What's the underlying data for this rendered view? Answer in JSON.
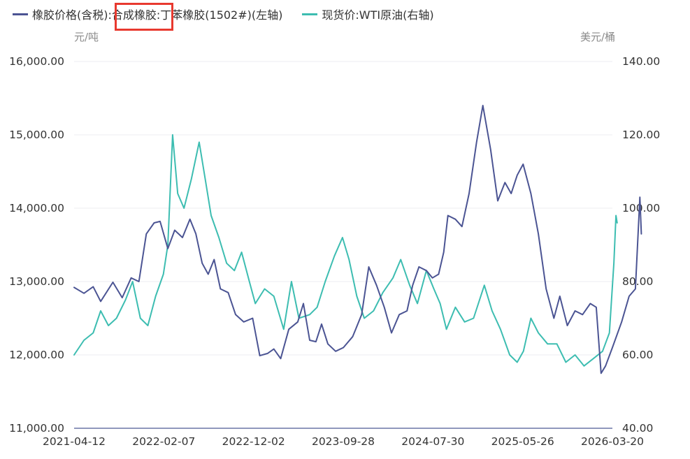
{
  "legend": {
    "series1": "橡胶价格(含税):合成橡胶:丁苯橡胶(1502#)(左轴)",
    "series2": "现货价:WTI原油(右轴)"
  },
  "units": {
    "left": "元/吨",
    "right": "美元/桶"
  },
  "colors": {
    "rubber": "#4b5493",
    "oil": "#3dbdb1",
    "axis": "#6a75a6",
    "grid": "#ececf2",
    "highlight": "#e8392f"
  },
  "chart_data": {
    "type": "line",
    "x_ticks": [
      "2021-04-12",
      "2022-02-07",
      "2022-12-02",
      "2023-09-28",
      "2024-07-30",
      "2025-05-26",
      "2026-03-20"
    ],
    "y_left": {
      "label": "元/吨",
      "range": [
        11000,
        16000
      ],
      "ticks": [
        "11,000.00",
        "12,000.00",
        "13,000.00",
        "14,000.00",
        "15,000.00",
        "16,000.00"
      ]
    },
    "y_right": {
      "label": "美元/桶",
      "range": [
        40,
        140
      ],
      "ticks": [
        "40.00",
        "60.00",
        "80.00",
        "100.00",
        "120.00",
        "140.00"
      ]
    },
    "grid": true,
    "legend_position": "top-left",
    "series": [
      {
        "name": "橡胶价格(含税):合成橡胶:丁苯橡胶(1502#)(左轴)",
        "axis": "left",
        "points": [
          [
            "2021-04-12",
            12920
          ],
          [
            "2021-05-15",
            12840
          ],
          [
            "2021-06-15",
            12930
          ],
          [
            "2021-07-10",
            12730
          ],
          [
            "2021-08-20",
            12990
          ],
          [
            "2021-09-20",
            12780
          ],
          [
            "2021-10-20",
            13050
          ],
          [
            "2021-11-15",
            13000
          ],
          [
            "2021-12-10",
            13650
          ],
          [
            "2022-01-05",
            13800
          ],
          [
            "2022-01-25",
            13820
          ],
          [
            "2022-02-20",
            13450
          ],
          [
            "2022-03-15",
            13700
          ],
          [
            "2022-04-10",
            13600
          ],
          [
            "2022-05-05",
            13850
          ],
          [
            "2022-05-25",
            13650
          ],
          [
            "2022-06-15",
            13250
          ],
          [
            "2022-07-05",
            13100
          ],
          [
            "2022-07-25",
            13300
          ],
          [
            "2022-08-15",
            12900
          ],
          [
            "2022-09-10",
            12850
          ],
          [
            "2022-10-05",
            12550
          ],
          [
            "2022-11-01",
            12450
          ],
          [
            "2022-12-01",
            12500
          ],
          [
            "2022-12-25",
            11990
          ],
          [
            "2023-01-20",
            12020
          ],
          [
            "2023-02-10",
            12080
          ],
          [
            "2023-03-05",
            11950
          ],
          [
            "2023-04-01",
            12350
          ],
          [
            "2023-05-01",
            12450
          ],
          [
            "2023-05-20",
            12700
          ],
          [
            "2023-06-10",
            12200
          ],
          [
            "2023-07-01",
            12180
          ],
          [
            "2023-07-20",
            12420
          ],
          [
            "2023-08-10",
            12150
          ],
          [
            "2023-09-05",
            12050
          ],
          [
            "2023-10-01",
            12100
          ],
          [
            "2023-11-01",
            12250
          ],
          [
            "2023-12-01",
            12550
          ],
          [
            "2023-12-25",
            13200
          ],
          [
            "2024-01-20",
            12950
          ],
          [
            "2024-02-15",
            12650
          ],
          [
            "2024-03-10",
            12300
          ],
          [
            "2024-04-05",
            12550
          ],
          [
            "2024-05-01",
            12600
          ],
          [
            "2024-05-20",
            12950
          ],
          [
            "2024-06-10",
            13200
          ],
          [
            "2024-07-05",
            13150
          ],
          [
            "2024-07-25",
            13050
          ],
          [
            "2024-08-15",
            13100
          ],
          [
            "2024-09-01",
            13400
          ],
          [
            "2024-09-15",
            13900
          ],
          [
            "2024-10-10",
            13850
          ],
          [
            "2024-11-01",
            13750
          ],
          [
            "2024-11-25",
            14200
          ],
          [
            "2024-12-20",
            14900
          ],
          [
            "2025-01-10",
            15400
          ],
          [
            "2025-02-05",
            14800
          ],
          [
            "2025-03-01",
            14100
          ],
          [
            "2025-03-25",
            14350
          ],
          [
            "2025-04-15",
            14200
          ],
          [
            "2025-05-05",
            14450
          ],
          [
            "2025-05-25",
            14600
          ],
          [
            "2025-06-20",
            14200
          ],
          [
            "2025-07-15",
            13650
          ],
          [
            "2025-08-10",
            12900
          ],
          [
            "2025-09-05",
            12500
          ],
          [
            "2025-09-25",
            12800
          ],
          [
            "2025-10-20",
            12400
          ],
          [
            "2025-11-15",
            12600
          ],
          [
            "2025-12-10",
            12550
          ],
          [
            "2026-01-05",
            12700
          ],
          [
            "2026-01-25",
            12650
          ],
          [
            "2026-02-10",
            11750
          ],
          [
            "2026-02-25",
            11850
          ],
          [
            "2026-03-20",
            12100
          ],
          [
            "2026-04-20",
            12450
          ],
          [
            "2026-05-15",
            12800
          ],
          [
            "2026-06-05",
            12900
          ],
          [
            "2026-06-20",
            14150
          ],
          [
            "2026-06-25",
            13650
          ]
        ]
      },
      {
        "name": "现货价:WTI原油(右轴)",
        "axis": "right",
        "points": [
          [
            "2021-04-12",
            60
          ],
          [
            "2021-05-15",
            64
          ],
          [
            "2021-06-15",
            66
          ],
          [
            "2021-07-10",
            72
          ],
          [
            "2021-08-05",
            68
          ],
          [
            "2021-09-01",
            70
          ],
          [
            "2021-10-01",
            75
          ],
          [
            "2021-10-25",
            80
          ],
          [
            "2021-11-20",
            70
          ],
          [
            "2021-12-15",
            68
          ],
          [
            "2022-01-10",
            76
          ],
          [
            "2022-02-05",
            82
          ],
          [
            "2022-02-20",
            90
          ],
          [
            "2022-03-08",
            120
          ],
          [
            "2022-03-25",
            104
          ],
          [
            "2022-04-15",
            100
          ],
          [
            "2022-05-10",
            108
          ],
          [
            "2022-06-05",
            118
          ],
          [
            "2022-06-25",
            108
          ],
          [
            "2022-07-15",
            98
          ],
          [
            "2022-08-10",
            92
          ],
          [
            "2022-09-05",
            85
          ],
          [
            "2022-10-01",
            83
          ],
          [
            "2022-10-25",
            88
          ],
          [
            "2022-11-20",
            80
          ],
          [
            "2022-12-10",
            74
          ],
          [
            "2023-01-10",
            78
          ],
          [
            "2023-02-10",
            76
          ],
          [
            "2023-03-15",
            67
          ],
          [
            "2023-04-10",
            80
          ],
          [
            "2023-05-05",
            70
          ],
          [
            "2023-06-10",
            71
          ],
          [
            "2023-07-05",
            73
          ],
          [
            "2023-08-01",
            80
          ],
          [
            "2023-09-01",
            87
          ],
          [
            "2023-09-28",
            92
          ],
          [
            "2023-10-20",
            86
          ],
          [
            "2023-11-15",
            76
          ],
          [
            "2023-12-10",
            70
          ],
          [
            "2024-01-10",
            72
          ],
          [
            "2024-02-10",
            77
          ],
          [
            "2024-03-15",
            81
          ],
          [
            "2024-04-10",
            86
          ],
          [
            "2024-05-10",
            79
          ],
          [
            "2024-06-05",
            74
          ],
          [
            "2024-07-05",
            83
          ],
          [
            "2024-07-30",
            78
          ],
          [
            "2024-08-20",
            74
          ],
          [
            "2024-09-10",
            67
          ],
          [
            "2024-10-10",
            73
          ],
          [
            "2024-11-10",
            69
          ],
          [
            "2024-12-10",
            70
          ],
          [
            "2025-01-15",
            79
          ],
          [
            "2025-02-10",
            72
          ],
          [
            "2025-03-10",
            67
          ],
          [
            "2025-04-10",
            60
          ],
          [
            "2025-05-05",
            58
          ],
          [
            "2025-05-26",
            61
          ],
          [
            "2025-06-20",
            70
          ],
          [
            "2025-07-15",
            66
          ],
          [
            "2025-08-15",
            63
          ],
          [
            "2025-09-15",
            63
          ],
          [
            "2025-10-15",
            58
          ],
          [
            "2025-11-15",
            60
          ],
          [
            "2025-12-15",
            57
          ],
          [
            "2026-01-15",
            59
          ],
          [
            "2026-02-15",
            61
          ],
          [
            "2026-03-10",
            66
          ],
          [
            "2026-03-25",
            85
          ],
          [
            "2026-04-01",
            98
          ],
          [
            "2026-04-05",
            96
          ]
        ]
      }
    ]
  }
}
